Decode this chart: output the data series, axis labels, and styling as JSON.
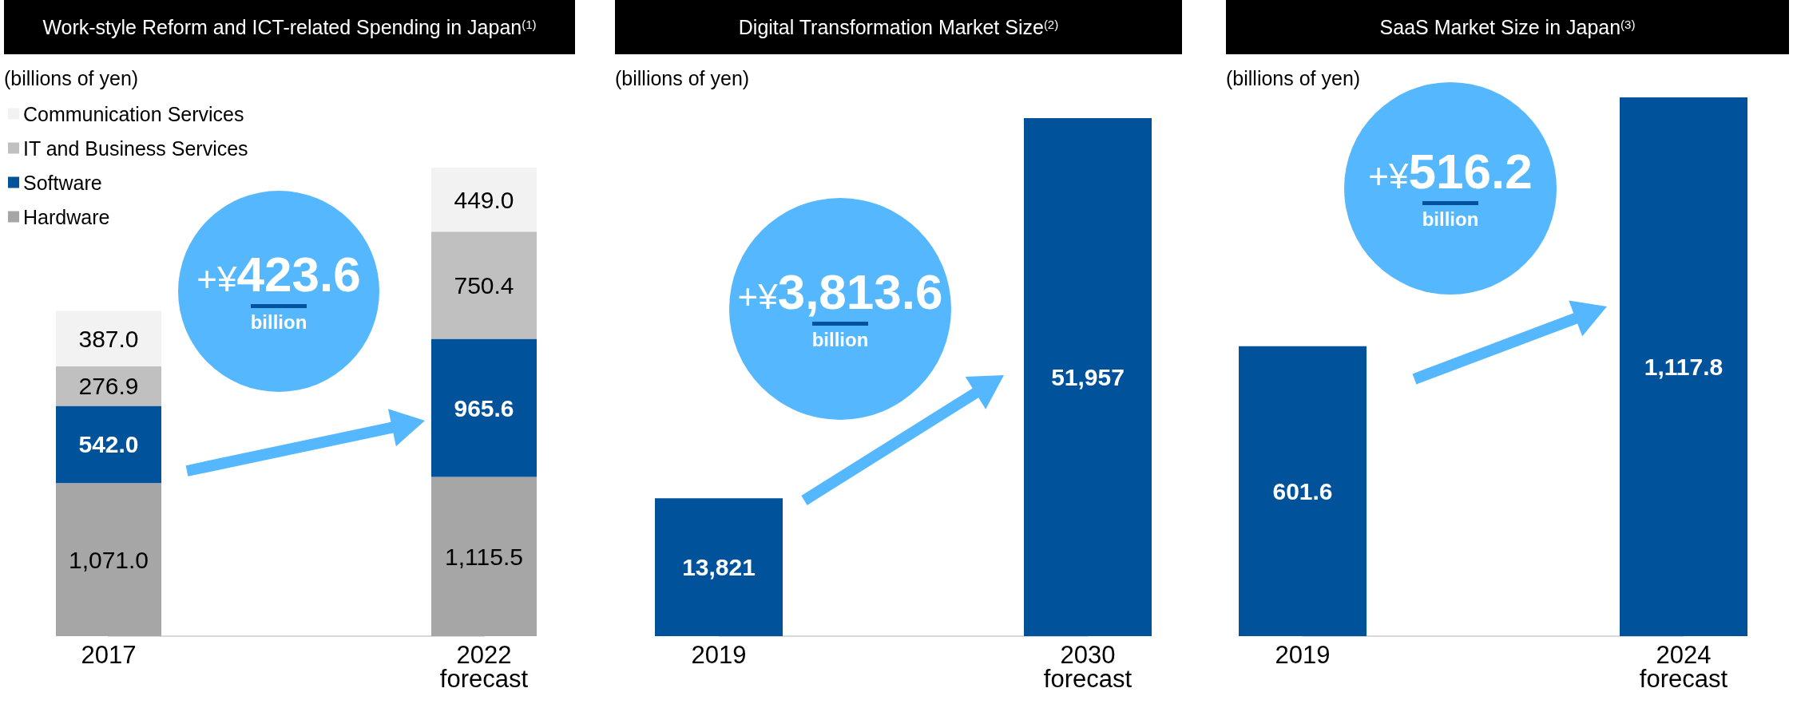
{
  "chart_data": [
    {
      "type": "bar",
      "title": "Work-style Reform and ICT-related Spending in Japan$^{(1)}$",
      "ylabel": "(billions of yen)",
      "categories": [
        "2017",
        "2022\nforecast"
      ],
      "stacked": true,
      "legend": "top left",
      "tick_labels": "x",
      "annotations": [
        "+¥423.6",
        "billion"
      ],
      "series": [
        {
          "name": "Hardware",
          "color": "#a6a6a6",
          "values": [
            1071.0,
            1115.5
          ],
          "value_labels": [
            "1,071.0",
            "1,115.5"
          ]
        },
        {
          "name": "Software",
          "color": "#00529b",
          "values": [
            542.0,
            965.6
          ],
          "value_labels": [
            "542.0",
            "965.6"
          ]
        },
        {
          "name": "IT and Business Services",
          "color": "#c0c0c0",
          "values": [
            276.9,
            750.4
          ],
          "value_labels": [
            "276.9",
            "750.4"
          ]
        },
        {
          "name": "Communication Services",
          "color": "#f2f2f2",
          "values": [
            387.0,
            449.0
          ],
          "value_labels": [
            "387.0",
            "449.0"
          ]
        }
      ]
    },
    {
      "type": "bar",
      "title": "Digital Transformation Market Size$^{(2)}$",
      "ylabel": "(billions of yen)",
      "categories": [
        "2019",
        "2030\nforecast"
      ],
      "tick_labels": "x",
      "annotations": [
        "+¥3,813.6",
        "billion"
      ],
      "series": [
        {
          "color": "#00529b",
          "values": [
            13821,
            51957
          ],
          "value_labels": [
            "13,821",
            "51,957"
          ]
        }
      ]
    },
    {
      "type": "bar",
      "title": "SaaS Market Size in Japan$^{(3)}$",
      "ylabel": "(billions of yen)",
      "categories": [
        "2019",
        "2024\nforecast"
      ],
      "tick_labels": "x",
      "annotations": [
        "+¥516.2",
        "billion"
      ],
      "series": [
        {
          "color": "#00529b",
          "values": [
            601.6,
            1117.8
          ],
          "value_labels": [
            "601.6",
            "1,117.8"
          ]
        }
      ]
    }
  ]
}
